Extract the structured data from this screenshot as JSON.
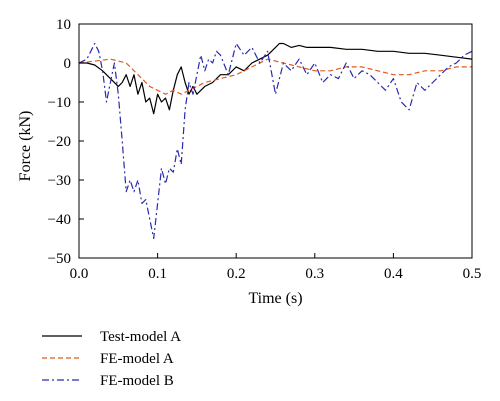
{
  "chart_data": {
    "type": "line",
    "title": "",
    "xlabel": "Time (s)",
    "ylabel": "Force (kN)",
    "xlim": [
      0.0,
      0.5
    ],
    "ylim": [
      -50,
      10
    ],
    "x_ticks": [
      0.0,
      0.1,
      0.2,
      0.3,
      0.4,
      0.5
    ],
    "x_tick_labels": [
      "0.0",
      "0.1",
      "0.2",
      "0.3",
      "0.4",
      "0.5"
    ],
    "y_ticks": [
      10,
      0,
      -10,
      -20,
      -30,
      -40,
      -50
    ],
    "y_tick_labels": [
      "10",
      "0",
      "−10",
      "−20",
      "−30",
      "−40",
      "−50"
    ],
    "grid": false,
    "legend_position": "below-left",
    "series": [
      {
        "name": "Test-model A",
        "color": "#000000",
        "dash": "solid",
        "x": [
          0.0,
          0.01,
          0.02,
          0.03,
          0.04,
          0.05,
          0.055,
          0.06,
          0.065,
          0.07,
          0.075,
          0.08,
          0.085,
          0.09,
          0.095,
          0.1,
          0.105,
          0.11,
          0.115,
          0.12,
          0.125,
          0.13,
          0.135,
          0.14,
          0.145,
          0.15,
          0.16,
          0.17,
          0.18,
          0.19,
          0.2,
          0.21,
          0.22,
          0.23,
          0.24,
          0.25,
          0.255,
          0.26,
          0.27,
          0.28,
          0.29,
          0.3,
          0.32,
          0.34,
          0.36,
          0.38,
          0.4,
          0.42,
          0.44,
          0.46,
          0.48,
          0.5
        ],
        "y": [
          0,
          0,
          -0.5,
          -2,
          -4,
          -6,
          -5,
          -3,
          -6,
          -3,
          -8,
          -5,
          -10,
          -9,
          -13,
          -8,
          -10,
          -9,
          -12,
          -7,
          -3,
          -1,
          -5,
          -8,
          -6,
          -8,
          -6,
          -5,
          -3,
          -3,
          -1,
          -2,
          0,
          1,
          2,
          4,
          5,
          5,
          4,
          4.5,
          4,
          4,
          4,
          3.5,
          3.5,
          3,
          3,
          2.5,
          2.5,
          2,
          1.5,
          1
        ]
      },
      {
        "name": "FE-model A",
        "color": "#e05a1e",
        "dash": "dashed",
        "x": [
          0.0,
          0.02,
          0.04,
          0.06,
          0.07,
          0.08,
          0.09,
          0.1,
          0.11,
          0.12,
          0.13,
          0.14,
          0.16,
          0.18,
          0.2,
          0.22,
          0.24,
          0.26,
          0.28,
          0.3,
          0.32,
          0.34,
          0.36,
          0.38,
          0.4,
          0.42,
          0.44,
          0.46,
          0.48,
          0.5
        ],
        "y": [
          0,
          0.5,
          1,
          0,
          -2,
          -4,
          -6,
          -7,
          -8,
          -7,
          -8,
          -7,
          -5,
          -4,
          -3,
          -1,
          1,
          0,
          -1,
          -2,
          -2,
          -1,
          -1,
          -2,
          -3,
          -3,
          -2,
          -2,
          -1,
          -1
        ]
      },
      {
        "name": "FE-model B",
        "color": "#2a2ab0",
        "dash": "dashdot",
        "x": [
          0.0,
          0.01,
          0.015,
          0.02,
          0.025,
          0.03,
          0.035,
          0.04,
          0.045,
          0.05,
          0.055,
          0.06,
          0.065,
          0.07,
          0.075,
          0.08,
          0.085,
          0.09,
          0.095,
          0.1,
          0.105,
          0.11,
          0.115,
          0.12,
          0.125,
          0.13,
          0.135,
          0.14,
          0.145,
          0.15,
          0.155,
          0.16,
          0.165,
          0.17,
          0.175,
          0.18,
          0.19,
          0.2,
          0.21,
          0.22,
          0.23,
          0.24,
          0.25,
          0.26,
          0.27,
          0.28,
          0.29,
          0.3,
          0.31,
          0.32,
          0.33,
          0.34,
          0.35,
          0.36,
          0.37,
          0.38,
          0.39,
          0.4,
          0.41,
          0.42,
          0.43,
          0.44,
          0.45,
          0.46,
          0.47,
          0.48,
          0.49,
          0.5
        ],
        "y": [
          0,
          1,
          3,
          5,
          3,
          -2,
          -10,
          -5,
          0,
          -8,
          -20,
          -33,
          -30,
          -33,
          -30,
          -36,
          -35,
          -40,
          -45,
          -36,
          -27,
          -31,
          -27,
          -28,
          -22,
          -26,
          -12,
          -5,
          -8,
          -3,
          2,
          -2,
          1,
          0,
          3,
          2,
          -3,
          5,
          2,
          4,
          0,
          3,
          -8,
          0,
          -2,
          1,
          -3,
          0,
          -5,
          -3,
          -4,
          0,
          -4,
          -2,
          -3,
          -5,
          -7,
          -4,
          -10,
          -12,
          -5,
          -7,
          -5,
          -3,
          -1,
          0,
          2,
          3
        ]
      }
    ]
  }
}
